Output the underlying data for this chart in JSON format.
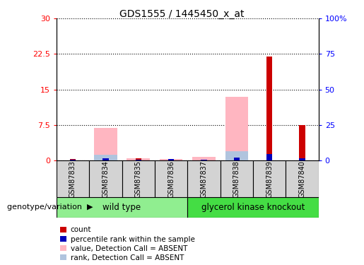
{
  "title": "GDS1555 / 1445450_x_at",
  "samples": [
    "GSM87833",
    "GSM87834",
    "GSM87835",
    "GSM87836",
    "GSM87837",
    "GSM87838",
    "GSM87839",
    "GSM87840"
  ],
  "count": [
    0.3,
    0.2,
    0.4,
    0.15,
    0.1,
    0.3,
    22.0,
    7.5
  ],
  "percentile_rank": [
    0.5,
    1.2,
    0.5,
    0.8,
    0.3,
    2.0,
    4.5,
    1.5
  ],
  "value_absent": [
    0.0,
    6.8,
    0.5,
    0.3,
    0.8,
    13.5,
    0.0,
    0.0
  ],
  "rank_absent": [
    0.0,
    1.2,
    0.0,
    0.0,
    0.0,
    2.0,
    0.0,
    0.0
  ],
  "ylim_left": [
    0,
    30
  ],
  "ylim_right": [
    0,
    100
  ],
  "yticks_left": [
    0,
    7.5,
    15,
    22.5,
    30
  ],
  "yticks_right": [
    0,
    25,
    50,
    75,
    100
  ],
  "ytick_labels_right": [
    "0",
    "25",
    "50",
    "75",
    "100%"
  ],
  "colors": {
    "count": "#CC0000",
    "percentile_rank": "#0000BB",
    "value_absent": "#FFB6C1",
    "rank_absent": "#B0C4DE"
  },
  "legend_labels": [
    "count",
    "percentile rank within the sample",
    "value, Detection Call = ABSENT",
    "rank, Detection Call = ABSENT"
  ],
  "genotype_label": "genotype/variation",
  "wt_color": "#90EE90",
  "gk_color": "#44DD44",
  "sample_box_color": "#D3D3D3"
}
